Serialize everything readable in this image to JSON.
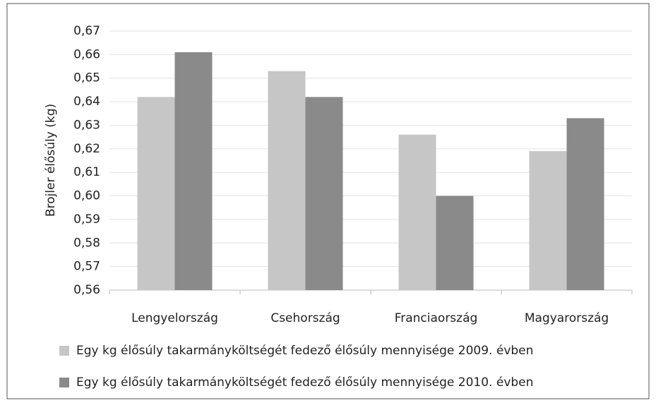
{
  "chart_data": {
    "type": "bar",
    "y_label": "Brojler élősúly (kg)",
    "categories": [
      "Lengyelország",
      "Csehország",
      "Franciaország",
      "Magyarország"
    ],
    "series": [
      {
        "name": "Egy kg élősúly takarmányköltségét fedező élősúly mennyisége 2009. évben",
        "color": "#c6c6c6",
        "values": [
          0.642,
          0.653,
          0.626,
          0.619
        ]
      },
      {
        "name": "Egy kg élősúly takarmányköltségét fedező élősúly mennyisége 2010. évben",
        "color": "#8a8a8b",
        "values": [
          0.661,
          0.642,
          0.6,
          0.633
        ]
      }
    ],
    "ylim": [
      0.56,
      0.67
    ],
    "yticks": [
      {
        "value": 0.56,
        "label": "0,56"
      },
      {
        "value": 0.57,
        "label": "0,57"
      },
      {
        "value": 0.58,
        "label": "0,58"
      },
      {
        "value": 0.59,
        "label": "0,59"
      },
      {
        "value": 0.6,
        "label": "0,60"
      },
      {
        "value": 0.61,
        "label": "0,61"
      },
      {
        "value": 0.62,
        "label": "0,62"
      },
      {
        "value": 0.63,
        "label": "0,63"
      },
      {
        "value": 0.64,
        "label": "0,64"
      },
      {
        "value": 0.65,
        "label": "0,65"
      },
      {
        "value": 0.66,
        "label": "0,66"
      },
      {
        "value": 0.67,
        "label": "0,67"
      }
    ],
    "grid": true
  }
}
